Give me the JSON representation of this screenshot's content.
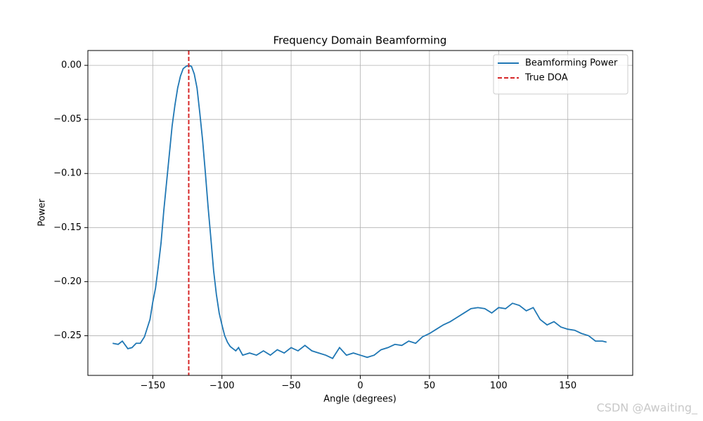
{
  "chart_data": {
    "type": "line",
    "title": "Frequency Domain Beamforming",
    "xlabel": "Angle (degrees)",
    "ylabel": "Power",
    "xlim": [
      -196.9,
      196.9
    ],
    "ylim": [
      -0.2867,
      0.0137
    ],
    "xticks": [
      {
        "value": -150,
        "label": "−150"
      },
      {
        "value": -100,
        "label": "−100"
      },
      {
        "value": -50,
        "label": "−50"
      },
      0,
      50,
      100,
      150
    ],
    "yticks": [
      {
        "value": 0,
        "label": "0.00"
      },
      {
        "value": -0.05,
        "label": "−0.05"
      },
      {
        "value": -0.1,
        "label": "−0.10"
      },
      {
        "value": -0.15,
        "label": "−0.15"
      },
      {
        "value": -0.2,
        "label": "−0.20"
      },
      {
        "value": -0.25,
        "label": "−0.25"
      }
    ],
    "grid": true,
    "legend": "upper right",
    "series": [
      {
        "name": "Beamforming Power",
        "color": "#1f77b4",
        "x": [
          -179,
          -175,
          -172,
          -168,
          -165,
          -162,
          -159,
          -156,
          -154,
          -152,
          -150,
          -148,
          -146,
          -144,
          -142,
          -140,
          -138,
          -136,
          -134,
          -132,
          -130,
          -128,
          -126,
          -124,
          -122,
          -120,
          -118,
          -116,
          -114,
          -112,
          -110,
          -108,
          -106,
          -104,
          -102,
          -100,
          -98,
          -96,
          -94,
          -92,
          -90,
          -88,
          -85,
          -80,
          -75,
          -70,
          -65,
          -60,
          -55,
          -50,
          -45,
          -40,
          -35,
          -30,
          -25,
          -20,
          -15,
          -10,
          -5,
          0,
          5,
          10,
          15,
          20,
          25,
          30,
          35,
          40,
          45,
          50,
          55,
          60,
          65,
          70,
          75,
          80,
          85,
          90,
          95,
          100,
          105,
          110,
          115,
          120,
          125,
          130,
          135,
          140,
          145,
          150,
          155,
          160,
          165,
          170,
          175,
          178
        ],
        "values": [
          -0.257,
          -0.258,
          -0.255,
          -0.262,
          -0.261,
          -0.257,
          -0.257,
          -0.251,
          -0.243,
          -0.235,
          -0.219,
          -0.206,
          -0.186,
          -0.164,
          -0.134,
          -0.108,
          -0.082,
          -0.056,
          -0.037,
          -0.021,
          -0.01,
          -0.003,
          -0.001,
          0.0,
          -0.001,
          -0.008,
          -0.021,
          -0.044,
          -0.069,
          -0.099,
          -0.131,
          -0.16,
          -0.19,
          -0.212,
          -0.229,
          -0.24,
          -0.25,
          -0.256,
          -0.26,
          -0.262,
          -0.264,
          -0.261,
          -0.268,
          -0.266,
          -0.268,
          -0.264,
          -0.268,
          -0.263,
          -0.266,
          -0.261,
          -0.264,
          -0.259,
          -0.264,
          -0.266,
          -0.268,
          -0.271,
          -0.261,
          -0.268,
          -0.266,
          -0.268,
          -0.27,
          -0.268,
          -0.263,
          -0.261,
          -0.258,
          -0.259,
          -0.255,
          -0.257,
          -0.251,
          -0.248,
          -0.244,
          -0.24,
          -0.237,
          -0.233,
          -0.229,
          -0.225,
          -0.224,
          -0.225,
          -0.229,
          -0.224,
          -0.225,
          -0.22,
          -0.222,
          -0.227,
          -0.224,
          -0.235,
          -0.24,
          -0.237,
          -0.242,
          -0.244,
          -0.245,
          -0.248,
          -0.25,
          -0.255,
          -0.255,
          -0.256
        ]
      },
      {
        "name": "True DOA",
        "color": "#d62728",
        "type": "vline",
        "dashed": true,
        "x": -124
      }
    ]
  },
  "watermark": "CSDN @Awaiting_"
}
